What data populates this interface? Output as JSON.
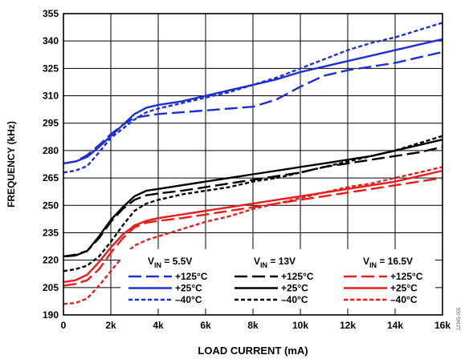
{
  "chart_data": {
    "type": "line",
    "xlabel": "LOAD CURRENT (mA)",
    "ylabel": "FREQUENCY (kHz)",
    "xlim": [
      0,
      16000
    ],
    "ylim": [
      190,
      355
    ],
    "xticks": [
      0,
      2000,
      4000,
      6000,
      8000,
      10000,
      12000,
      14000,
      16000
    ],
    "xtick_labels": [
      "0",
      "2k",
      "4k",
      "6k",
      "8k",
      "10k",
      "12k",
      "14k",
      "16k"
    ],
    "yticks": [
      190,
      205,
      220,
      235,
      250,
      265,
      280,
      295,
      310,
      325,
      340,
      355
    ],
    "ytick_labels": [
      "190",
      "205",
      "220",
      "235",
      "250",
      "265",
      "280",
      "295",
      "310",
      "325",
      "340",
      "355"
    ],
    "grid": true,
    "legend_placement": "bottom",
    "watermark": "12345-005",
    "legend_groups": [
      {
        "title_main": "V",
        "title_sub": "IN",
        "title_value": " = 5.5V",
        "color": "#1f2fd6",
        "entries": [
          "+125°C",
          "+25°C",
          "–40°C"
        ]
      },
      {
        "title_main": "V",
        "title_sub": "IN",
        "title_value": " = 13V",
        "color": "#000000",
        "entries": [
          "+125°C",
          "+25°C",
          "–40°C"
        ]
      },
      {
        "title_main": "V",
        "title_sub": "IN",
        "title_value": " = 16.5V",
        "color": "#ea1c1c",
        "entries": [
          "+125°C",
          "+25°C",
          "–40°C"
        ]
      }
    ],
    "series": [
      {
        "vin": "5.5V",
        "temp": "+125°C",
        "color": "#1f2fd6",
        "style": "long-dash",
        "x": [
          0,
          500,
          1000,
          1500,
          2000,
          2500,
          3000,
          4000,
          5000,
          6000,
          7000,
          8000,
          9000,
          10000,
          11000,
          12000,
          13000,
          14000,
          15000,
          16000
        ],
        "y": [
          273,
          274,
          277.5,
          283,
          289,
          294,
          298,
          300,
          301,
          302,
          303,
          304,
          308,
          315,
          321,
          324,
          326,
          328,
          331,
          334
        ]
      },
      {
        "vin": "5.5V",
        "temp": "+25°C",
        "color": "#1f2fd6",
        "style": "solid",
        "x": [
          0,
          500,
          1000,
          1500,
          2000,
          2500,
          3000,
          3500,
          4000,
          5000,
          6000,
          7000,
          8000,
          9000,
          10000,
          11000,
          12000,
          13000,
          14000,
          15000,
          16000
        ],
        "y": [
          273,
          274,
          276.5,
          282,
          288,
          294,
          300,
          303.5,
          305,
          307,
          310,
          313,
          316,
          319,
          323,
          326,
          329,
          332,
          335,
          338,
          341
        ]
      },
      {
        "vin": "5.5V",
        "temp": "–40°C",
        "color": "#1f2fd6",
        "style": "short-dash",
        "x": [
          0,
          500,
          1000,
          1500,
          2000,
          2500,
          3000,
          3500,
          4000,
          5000,
          6000,
          7000,
          8000,
          9000,
          10000,
          11000,
          12000,
          13000,
          14000,
          15000,
          16000
        ],
        "y": [
          268,
          269,
          271.5,
          279,
          287,
          292,
          297,
          301,
          303,
          306,
          309,
          312,
          316,
          320,
          325,
          330,
          335,
          339,
          342,
          346,
          350
        ]
      },
      {
        "vin": "13V",
        "temp": "+125°C",
        "color": "#000000",
        "style": "long-dash",
        "x": [
          0,
          500,
          1000,
          1500,
          2000,
          2500,
          3000,
          3500,
          4000,
          5000,
          6000,
          7000,
          8000,
          9000,
          10000,
          11000,
          12000,
          13000,
          14000,
          15000,
          16000
        ],
        "y": [
          222,
          223,
          225,
          232,
          241,
          248,
          253,
          255.5,
          256.5,
          258,
          260,
          262,
          264,
          266,
          268,
          271,
          273,
          275,
          277,
          279,
          282
        ]
      },
      {
        "vin": "13V",
        "temp": "+25°C",
        "color": "#000000",
        "style": "solid",
        "x": [
          0,
          500,
          1000,
          1500,
          2000,
          2500,
          3000,
          3500,
          4000,
          5000,
          6000,
          7000,
          8000,
          9000,
          10000,
          11000,
          12000,
          13000,
          14000,
          15000,
          16000
        ],
        "y": [
          222,
          222.5,
          225,
          233,
          242,
          249,
          255,
          258,
          259,
          261,
          263,
          265,
          267,
          269,
          271,
          273,
          275,
          277,
          280,
          283,
          286
        ]
      },
      {
        "vin": "13V",
        "temp": "–40°C",
        "color": "#000000",
        "style": "short-dash",
        "x": [
          0,
          500,
          1000,
          1500,
          2000,
          2500,
          3000,
          3500,
          4000,
          5000,
          6000,
          7000,
          8000,
          9000,
          10000,
          11000,
          12000,
          13000,
          14000,
          15000,
          16000
        ],
        "y": [
          214,
          215,
          217,
          222,
          230,
          239,
          247,
          251,
          253,
          256,
          258,
          260,
          263,
          265,
          268,
          271,
          274,
          277,
          280,
          284,
          288
        ]
      },
      {
        "vin": "16.5V",
        "temp": "+125°C",
        "color": "#ea1c1c",
        "style": "long-dash",
        "x": [
          0,
          500,
          1000,
          1500,
          2000,
          2500,
          3000,
          3500,
          4000,
          5000,
          6000,
          7000,
          8000,
          9000,
          10000,
          11000,
          12000,
          13000,
          14000,
          15000,
          16000
        ],
        "y": [
          206,
          207,
          209,
          215,
          224,
          232,
          238,
          240.5,
          241.5,
          243,
          245,
          247,
          249,
          251,
          253,
          255,
          257,
          259,
          261,
          263,
          265
        ]
      },
      {
        "vin": "16.5V",
        "temp": "+25°C",
        "color": "#ea1c1c",
        "style": "solid",
        "x": [
          0,
          500,
          1000,
          1500,
          2000,
          2500,
          3000,
          3500,
          4000,
          5000,
          6000,
          7000,
          8000,
          9000,
          10000,
          11000,
          12000,
          13000,
          14000,
          15000,
          16000
        ],
        "y": [
          208,
          209,
          212,
          219,
          227,
          234,
          239,
          241.5,
          243,
          245,
          247,
          249,
          251,
          253,
          255,
          257,
          259,
          261,
          263,
          266,
          269
        ]
      },
      {
        "vin": "16.5V",
        "temp": "–40°C",
        "color": "#ea1c1c",
        "style": "short-dash",
        "x": [
          0,
          500,
          1000,
          1500,
          2000,
          2500,
          3000,
          3500,
          4000,
          5000,
          6000,
          7000,
          8000,
          9000,
          10000,
          11000,
          12000,
          13000,
          14000,
          15000,
          16000
        ],
        "y": [
          196,
          196.5,
          199,
          206,
          214,
          222,
          228,
          231,
          233,
          237,
          241,
          244,
          248,
          251,
          254,
          257,
          260,
          262,
          265,
          268,
          271
        ]
      }
    ]
  }
}
